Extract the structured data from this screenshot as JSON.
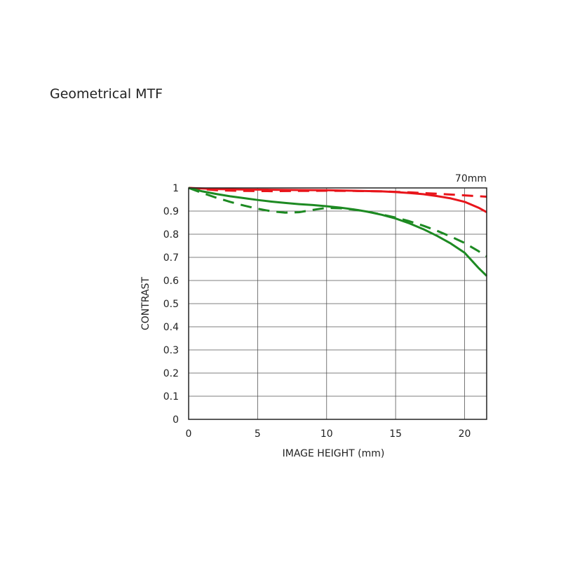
{
  "title": "Geometrical MTF",
  "chart_data": {
    "type": "line",
    "focal_label": "70mm",
    "xlabel": "IMAGE HEIGHT (mm)",
    "ylabel": "CONTRAST",
    "xlim": [
      0,
      21.6
    ],
    "ylim": [
      0,
      1
    ],
    "xticks": [
      0,
      5,
      10,
      15,
      20
    ],
    "yticks": [
      0,
      0.1,
      0.2,
      0.3,
      0.4,
      0.5,
      0.6,
      0.7,
      0.8,
      0.9,
      1
    ],
    "ytick_labels": [
      "0",
      "0.1",
      "0.2",
      "0.3",
      "0.4",
      "0.5",
      "0.6",
      "0.7",
      "0.8",
      "0.9",
      "1"
    ],
    "grid": true,
    "series": [
      {
        "color": "#e8151b",
        "dash": false,
        "x": [
          0,
          2,
          4,
          6,
          8,
          10,
          12,
          14,
          15,
          16,
          17,
          18,
          19,
          20,
          21,
          21.6
        ],
        "y": [
          1.0,
          0.995,
          0.993,
          0.992,
          0.991,
          0.99,
          0.988,
          0.985,
          0.982,
          0.978,
          0.973,
          0.965,
          0.955,
          0.94,
          0.915,
          0.895
        ]
      },
      {
        "color": "#e8151b",
        "dash": true,
        "x": [
          0,
          2,
          4,
          6,
          8,
          10,
          12,
          14,
          16,
          18,
          20,
          21.6
        ],
        "y": [
          1.0,
          0.99,
          0.987,
          0.986,
          0.987,
          0.988,
          0.987,
          0.985,
          0.981,
          0.975,
          0.968,
          0.962
        ]
      },
      {
        "color": "#1d8a22",
        "dash": false,
        "x": [
          0,
          1,
          2,
          3,
          4,
          5,
          6,
          7,
          8,
          9,
          10,
          11,
          12,
          13,
          14,
          15,
          16,
          17,
          18,
          19,
          20,
          21,
          21.6
        ],
        "y": [
          1.0,
          0.985,
          0.974,
          0.964,
          0.956,
          0.948,
          0.941,
          0.935,
          0.93,
          0.926,
          0.921,
          0.915,
          0.907,
          0.897,
          0.884,
          0.868,
          0.847,
          0.822,
          0.793,
          0.76,
          0.72,
          0.655,
          0.62
        ]
      },
      {
        "color": "#1d8a22",
        "dash": true,
        "x": [
          0,
          1,
          2,
          3,
          4,
          5,
          6,
          7,
          8,
          9,
          10,
          11,
          12,
          13,
          14,
          15,
          16,
          17,
          18,
          19,
          20,
          21,
          21.6
        ],
        "y": [
          1.0,
          0.978,
          0.958,
          0.94,
          0.924,
          0.91,
          0.899,
          0.893,
          0.895,
          0.905,
          0.914,
          0.912,
          0.906,
          0.897,
          0.885,
          0.872,
          0.856,
          0.837,
          0.815,
          0.79,
          0.762,
          0.727,
          0.705
        ]
      }
    ]
  }
}
